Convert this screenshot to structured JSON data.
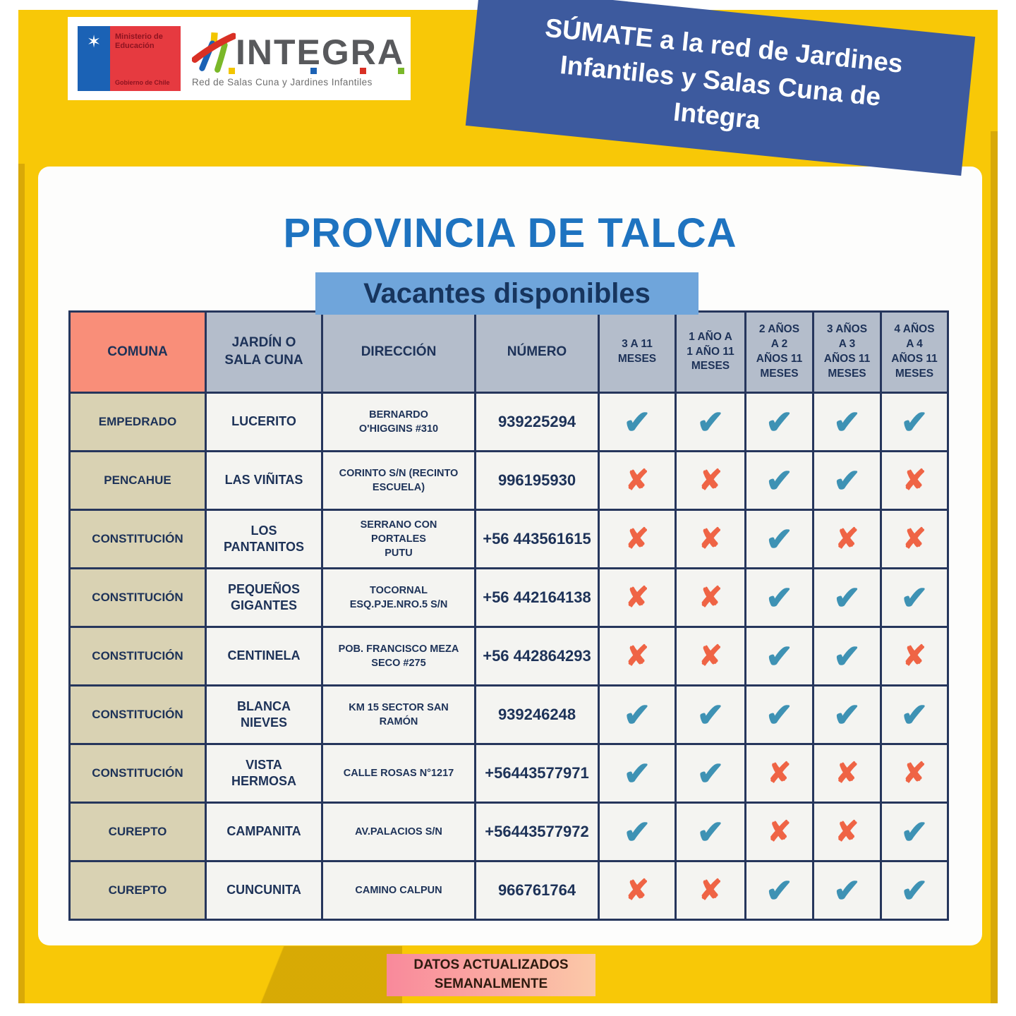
{
  "brand": {
    "ministry": "Ministerio de\nEducación",
    "government": "Gobierno de Chile",
    "integra_name": "INTEGRA",
    "integra_tagline": "Red de Salas Cuna y Jardines Infantiles"
  },
  "banner": {
    "text": "SÚMATE a la red de Jardines\nInfantiles y Salas Cuna de\nIntegra"
  },
  "title": "PROVINCIA DE TALCA",
  "subtitle": "Vacantes disponibles",
  "table": {
    "headers": [
      "COMUNA",
      "JARDÍN O\nSALA CUNA",
      "DIRECCIÓN",
      "NÚMERO",
      "3 A 11\nMESES",
      "1 AÑO A\n1 AÑO 11\nMESES",
      "2 AÑOS\nA 2\nAÑOS 11\nMESES",
      "3 AÑOS\nA 3\nAÑOS 11\nMESES",
      "4 AÑOS\nA 4\nAÑOS 11\nMESES"
    ],
    "check_glyph": "✔",
    "x_glyph": "✘",
    "rows": [
      {
        "comuna": "EMPEDRADO",
        "jardin": "LUCERITO",
        "direccion": "BERNARDO\nO'HIGGINS #310",
        "numero": "939225294",
        "vacantes": [
          true,
          true,
          true,
          true,
          true
        ]
      },
      {
        "comuna": "PENCAHUE",
        "jardin": "LAS VIÑITAS",
        "direccion": "CORINTO S/N (RECINTO\nESCUELA)",
        "numero": "996195930",
        "vacantes": [
          false,
          false,
          true,
          true,
          false
        ]
      },
      {
        "comuna": "CONSTITUCIÓN",
        "jardin": "LOS\nPANTANITOS",
        "direccion": "SERRANO CON\nPORTALES\nPUTU",
        "numero": "+56 443561615",
        "vacantes": [
          false,
          false,
          true,
          false,
          false
        ]
      },
      {
        "comuna": "CONSTITUCIÓN",
        "jardin": "PEQUEÑOS\nGIGANTES",
        "direccion": "TOCORNAL\nESQ.PJE.NRO.5 S/N",
        "numero": "+56 442164138",
        "vacantes": [
          false,
          false,
          true,
          true,
          true
        ]
      },
      {
        "comuna": "CONSTITUCIÓN",
        "jardin": "CENTINELA",
        "direccion": "POB. FRANCISCO MEZA\nSECO #275",
        "numero": "+56 442864293",
        "vacantes": [
          false,
          false,
          true,
          true,
          false
        ]
      },
      {
        "comuna": "CONSTITUCIÓN",
        "jardin": "BLANCA\nNIEVES",
        "direccion": "KM 15 SECTOR SAN\nRAMÓN",
        "numero": "939246248",
        "vacantes": [
          true,
          true,
          true,
          true,
          true
        ]
      },
      {
        "comuna": "CONSTITUCIÓN",
        "jardin": "VISTA\nHERMOSA",
        "direccion": "CALLE ROSAS N°1217",
        "numero": "+56443577971",
        "vacantes": [
          true,
          true,
          false,
          false,
          false
        ]
      },
      {
        "comuna": "CUREPTO",
        "jardin": "CAMPANITA",
        "direccion": "AV.PALACIOS S/N",
        "numero": "+56443577972",
        "vacantes": [
          true,
          true,
          false,
          false,
          true
        ]
      },
      {
        "comuna": "CUREPTO",
        "jardin": "CUNCUNITA",
        "direccion": "CAMINO CALPUN",
        "numero": "966761764",
        "vacantes": [
          false,
          false,
          true,
          true,
          true
        ]
      }
    ]
  },
  "footer": {
    "text": "DATOS ACTUALIZADOS\nSEMANALMENTE"
  },
  "colors": {
    "frame_yellow": "#F8C807",
    "frame_yellow_dark": "#D9A907",
    "banner_blue": "#3D5A9E",
    "title_blue": "#1E73C0",
    "subtitle_bg": "#6FA5DB",
    "header_gray": "#B4BDCB",
    "comuna_salmon": "#F98E79",
    "comuna_beige": "#D9D2B3",
    "cell_bg": "#F4F4F1",
    "border_navy": "#26365C",
    "check_teal": "#3E92B4",
    "cross_orange": "#EF6445",
    "footer_pink": "#F9899B",
    "footer_peach": "#FBC9A8"
  }
}
